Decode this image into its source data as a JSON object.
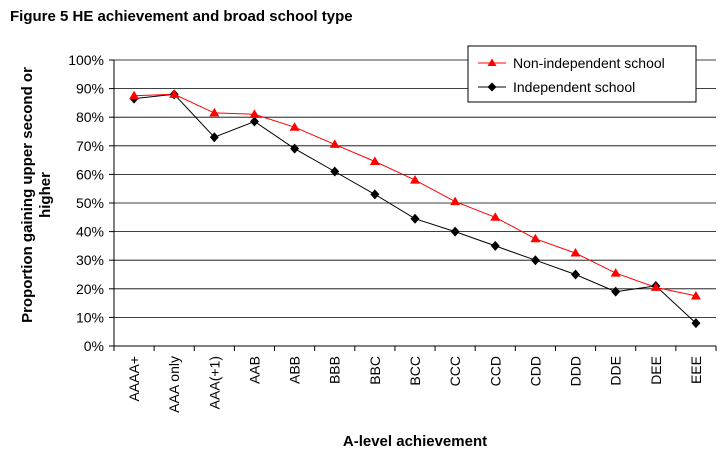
{
  "chart_data": {
    "type": "line",
    "title": "Figure 5 HE achievement and broad school type",
    "xlabel": "A-level achievement",
    "ylabel_line1": "Proportion gaining upper second or",
    "ylabel_line2": "higher",
    "categories": [
      "AAAA+",
      "AAA only",
      "AAA(+1)",
      "AAB",
      "ABB",
      "BBB",
      "BBC",
      "BCC",
      "CCC",
      "CCD",
      "CDD",
      "DDD",
      "DDE",
      "DEE",
      "EEE"
    ],
    "yticks": [
      "0%",
      "10%",
      "20%",
      "30%",
      "40%",
      "50%",
      "60%",
      "70%",
      "80%",
      "90%",
      "100%"
    ],
    "ylim": [
      0,
      100
    ],
    "grid": true,
    "legend_position": "top-right",
    "series": [
      {
        "name": "Non-independent school",
        "color": "#ff0000",
        "marker": "triangle",
        "values": [
          87.5,
          88,
          81.5,
          81,
          76.5,
          70.5,
          64.5,
          58,
          50.5,
          45,
          37.5,
          32.5,
          25.5,
          20.5,
          17.5
        ]
      },
      {
        "name": "Independent school",
        "color": "#000000",
        "marker": "diamond",
        "values": [
          86.5,
          88,
          73,
          78.5,
          69,
          61,
          53,
          44.5,
          40,
          35,
          30,
          25,
          19,
          21,
          8
        ]
      }
    ]
  }
}
